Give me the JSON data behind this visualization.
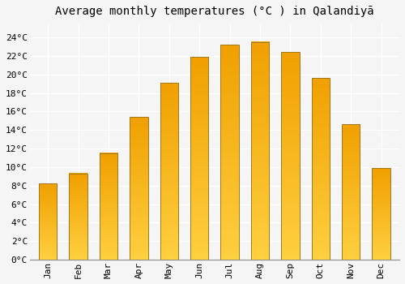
{
  "title": "Average monthly temperatures (°C ) in Qalandiyā",
  "months": [
    "Jan",
    "Feb",
    "Mar",
    "Apr",
    "May",
    "Jun",
    "Jul",
    "Aug",
    "Sep",
    "Oct",
    "Nov",
    "Dec"
  ],
  "values": [
    8.2,
    9.3,
    11.5,
    15.4,
    19.1,
    21.9,
    23.2,
    23.5,
    22.4,
    19.6,
    14.6,
    9.9
  ],
  "bar_color_top": "#FFD040",
  "bar_color_bottom": "#F0A000",
  "bar_edge_color": "#A07820",
  "background_color": "#F5F5F5",
  "grid_color": "#FFFFFF",
  "yticks": [
    0,
    2,
    4,
    6,
    8,
    10,
    12,
    14,
    16,
    18,
    20,
    22,
    24
  ],
  "ylim": [
    0,
    25.5
  ],
  "title_fontsize": 10,
  "tick_fontsize": 8,
  "xlabel_rotation": 90
}
